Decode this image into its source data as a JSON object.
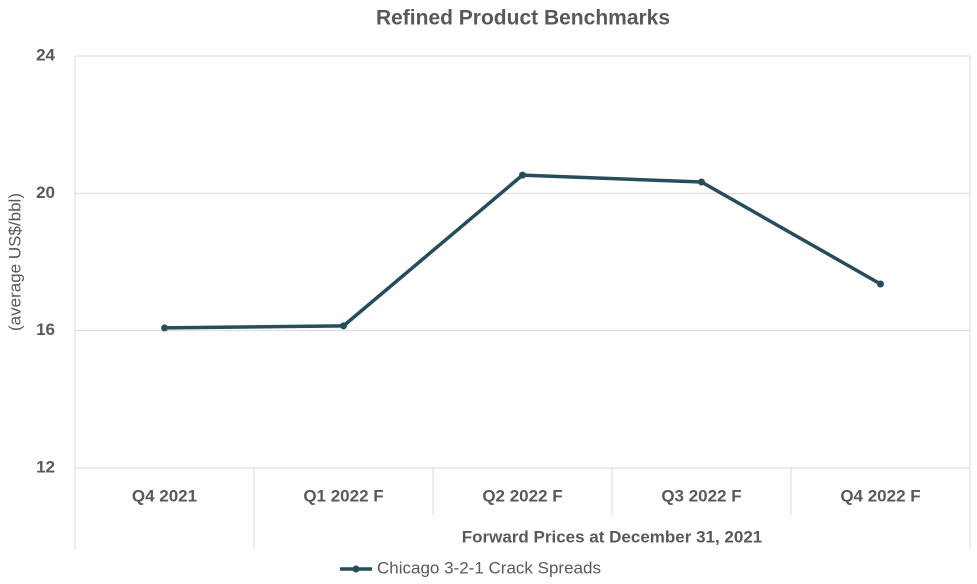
{
  "chart_data": {
    "type": "line",
    "title": "Refined Product Benchmarks",
    "y_label": "(average US$/bbl)",
    "categories": [
      "Q4 2021",
      "Q1 2022 F",
      "Q2 2022 F",
      "Q3 2022 F",
      "Q4 2022 F"
    ],
    "x_group_label": "Forward Prices at December 31, 2021",
    "series": [
      {
        "name": "Chicago 3-2-1 Crack Spreads",
        "color": "#264d59",
        "values": [
          16.08,
          16.14,
          20.53,
          20.33,
          17.36
        ]
      }
    ],
    "ylim": [
      12,
      24
    ],
    "yticks": [
      12,
      16,
      20,
      24
    ],
    "grid": true,
    "legend": "bottom"
  }
}
